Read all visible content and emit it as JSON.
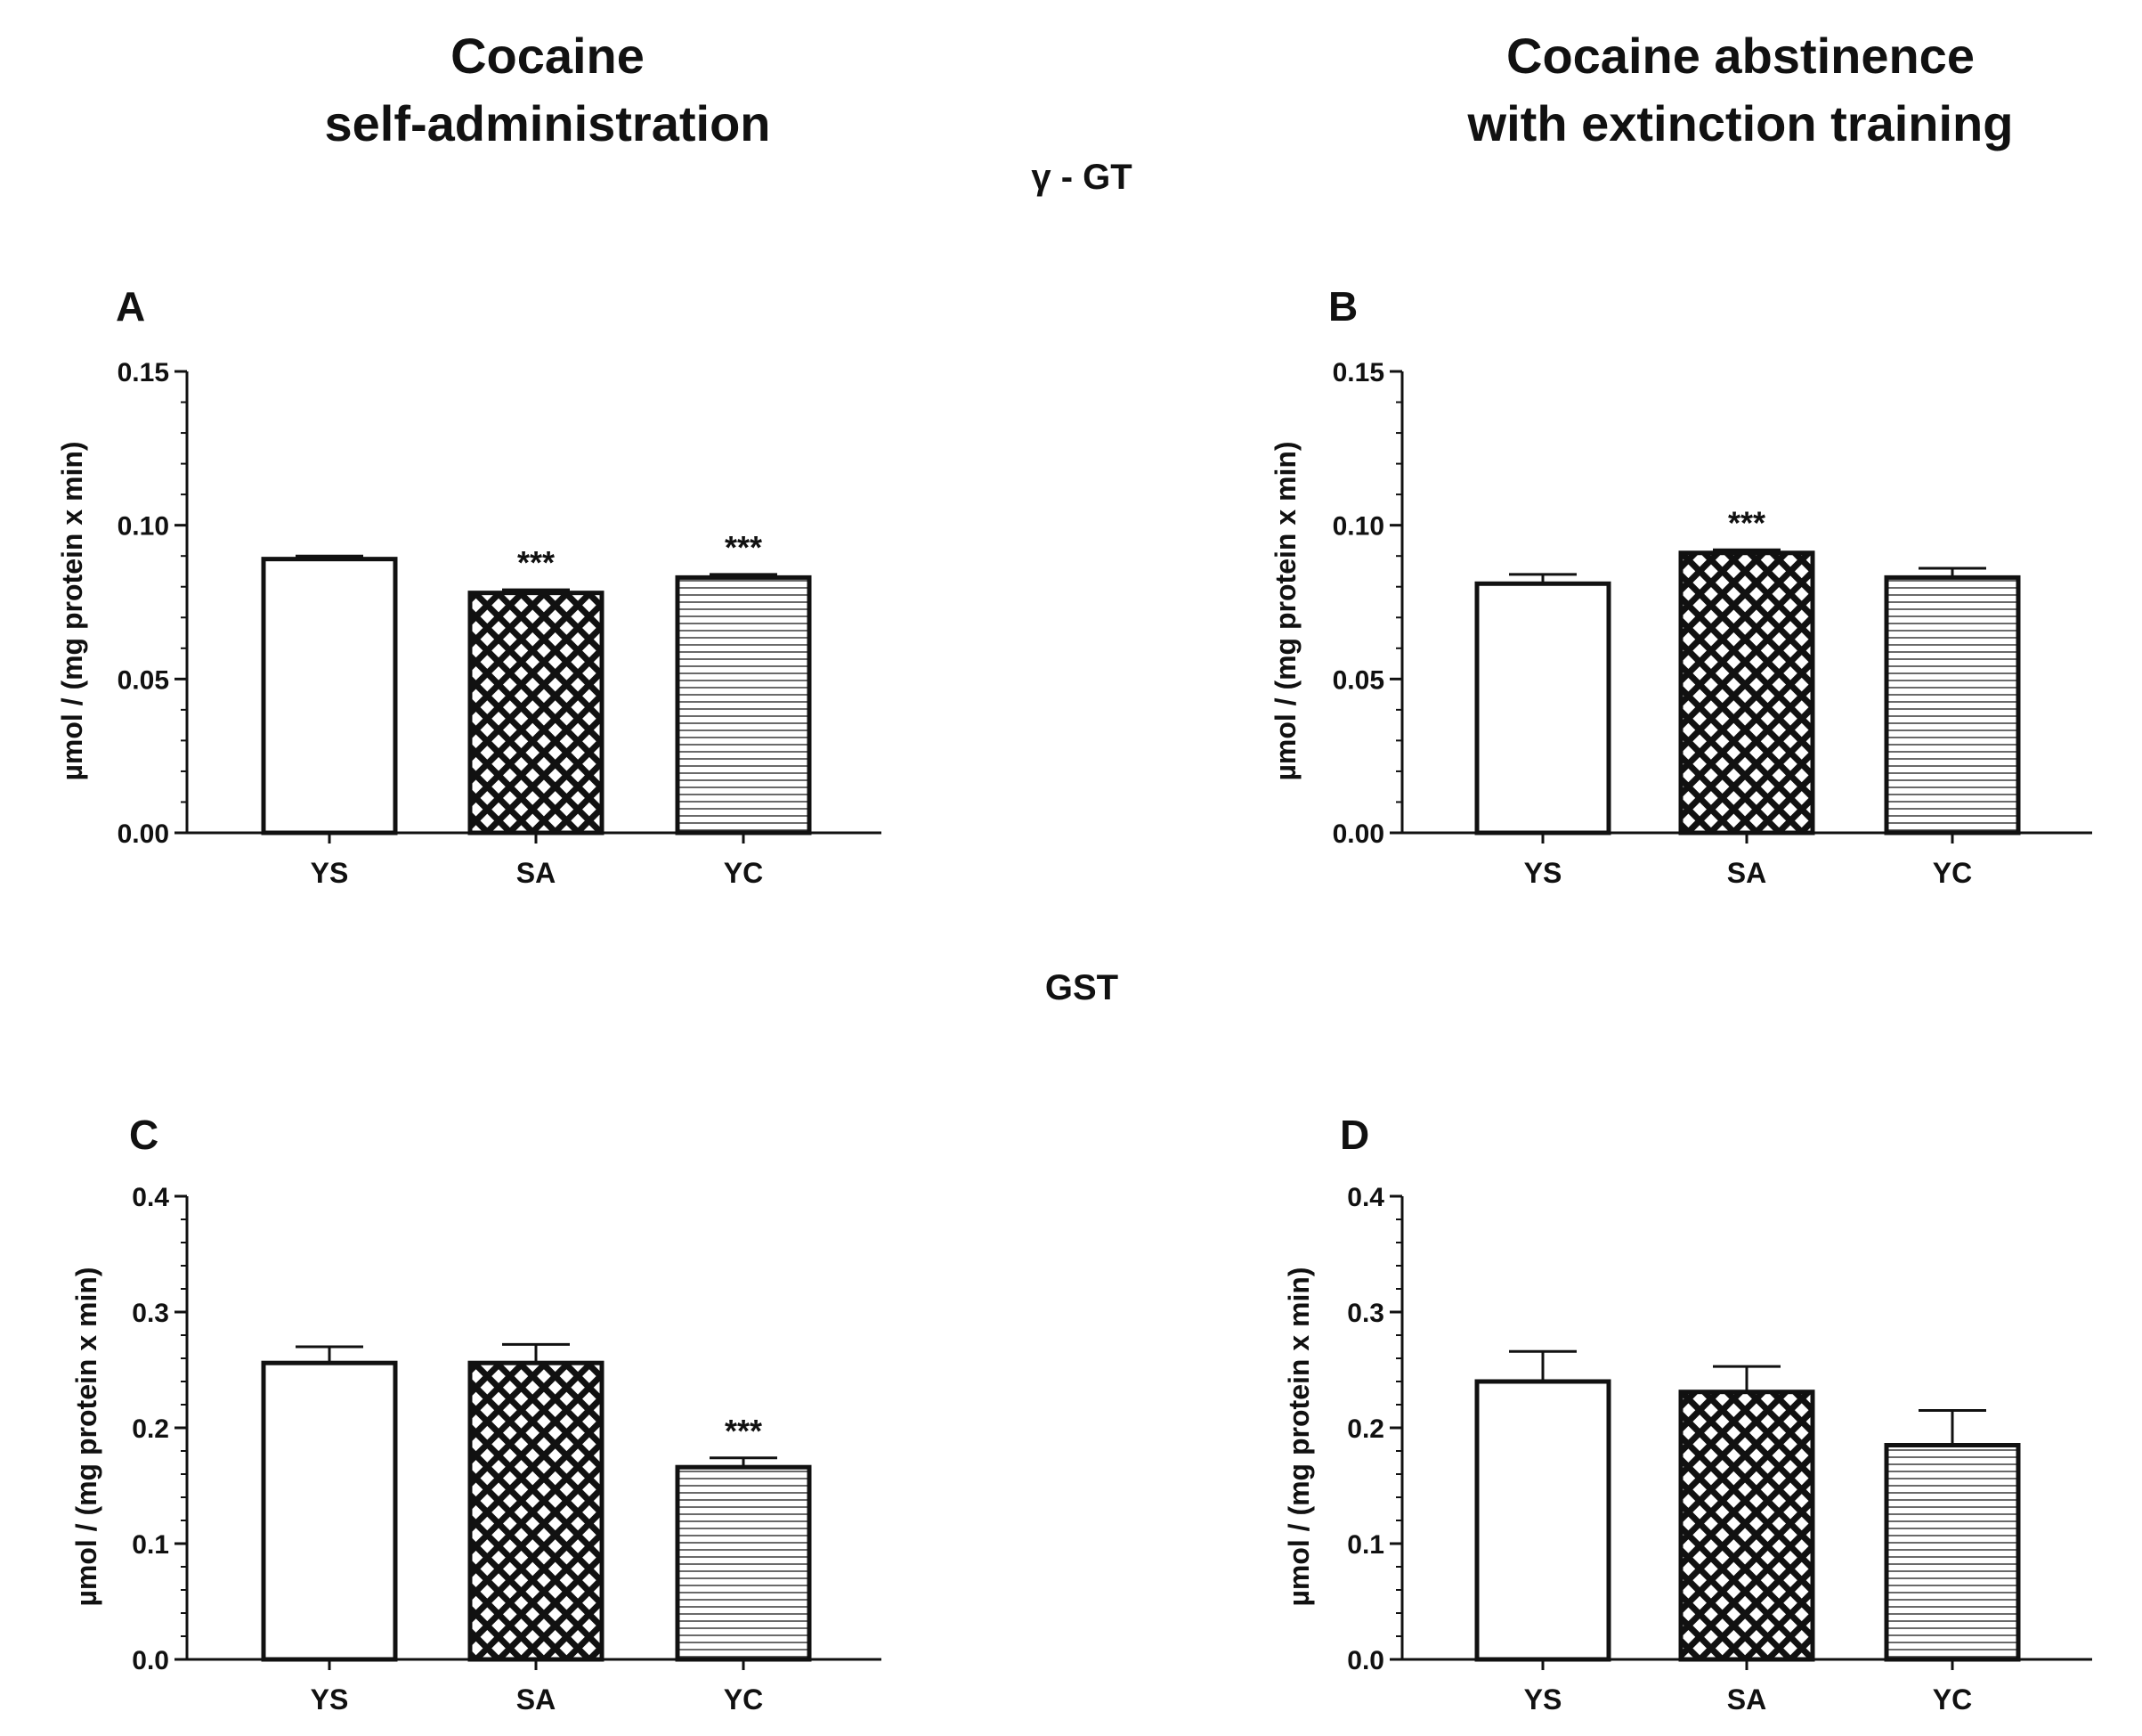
{
  "titles": {
    "left_column": [
      "Cocaine",
      "self-administration"
    ],
    "right_column": [
      "Cocaine abstinence",
      "with extinction training"
    ],
    "section_top": "γ - GT",
    "section_bottom": "GST"
  },
  "colors": {
    "ink": "#111111",
    "background": "#ffffff"
  },
  "chart_data": [
    {
      "panel": "A",
      "type": "bar",
      "section": "γ - GT",
      "column": "Cocaine self-administration",
      "categories": [
        "YS",
        "SA",
        "YC"
      ],
      "values": [
        0.089,
        0.078,
        0.083
      ],
      "errors": [
        0.001,
        0.001,
        0.001
      ],
      "fills": [
        "open",
        "crosshatch",
        "horizontal-lines"
      ],
      "significance": [
        "",
        "***",
        "***"
      ],
      "ylabel": "µmol / (mg protein x min)",
      "ylim": [
        0,
        0.15
      ],
      "yticks": [
        "0.00",
        "0.05",
        "0.10",
        "0.15"
      ],
      "ytick_values": [
        0,
        0.05,
        0.1,
        0.15
      ]
    },
    {
      "panel": "B",
      "type": "bar",
      "section": "γ - GT",
      "column": "Cocaine abstinence with extinction training",
      "categories": [
        "YS",
        "SA",
        "YC"
      ],
      "values": [
        0.081,
        0.091,
        0.083
      ],
      "errors": [
        0.003,
        0.001,
        0.003
      ],
      "fills": [
        "open",
        "crosshatch",
        "horizontal-lines"
      ],
      "significance": [
        "",
        "***",
        ""
      ],
      "ylabel": "µmol / (mg protein x min)",
      "ylim": [
        0,
        0.15
      ],
      "yticks": [
        "0.00",
        "0.05",
        "0.10",
        "0.15"
      ],
      "ytick_values": [
        0,
        0.05,
        0.1,
        0.15
      ]
    },
    {
      "panel": "C",
      "type": "bar",
      "section": "GST",
      "column": "Cocaine self-administration",
      "categories": [
        "YS",
        "SA",
        "YC"
      ],
      "values": [
        0.256,
        0.256,
        0.166
      ],
      "errors": [
        0.014,
        0.016,
        0.008
      ],
      "fills": [
        "open",
        "crosshatch",
        "horizontal-lines"
      ],
      "significance": [
        "",
        "",
        "***"
      ],
      "ylabel": "µmol / (mg protein x min)",
      "ylim": [
        0,
        0.4
      ],
      "yticks": [
        "0.0",
        "0.1",
        "0.2",
        "0.3",
        "0.4"
      ],
      "ytick_values": [
        0,
        0.1,
        0.2,
        0.3,
        0.4
      ]
    },
    {
      "panel": "D",
      "type": "bar",
      "section": "GST",
      "column": "Cocaine abstinence with extinction training",
      "categories": [
        "YS",
        "SA",
        "YC"
      ],
      "values": [
        0.24,
        0.231,
        0.185
      ],
      "errors": [
        0.026,
        0.022,
        0.03
      ],
      "fills": [
        "open",
        "crosshatch",
        "horizontal-lines"
      ],
      "significance": [
        "",
        "",
        ""
      ],
      "ylabel": "µmol / (mg protein x min)",
      "ylim": [
        0,
        0.4
      ],
      "yticks": [
        "0.0",
        "0.1",
        "0.2",
        "0.3",
        "0.4"
      ],
      "ytick_values": [
        0,
        0.1,
        0.2,
        0.3,
        0.4
      ]
    }
  ]
}
